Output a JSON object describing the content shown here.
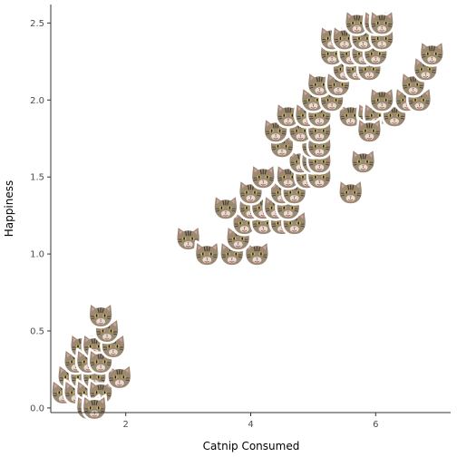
{
  "chart_data": {
    "type": "scatter",
    "title": "",
    "xlabel": "Catnip Consumed",
    "ylabel": "Happiness",
    "xlim": [
      0.8,
      7.2
    ],
    "ylim": [
      -0.03,
      2.62
    ],
    "xticks": [
      2,
      4,
      6
    ],
    "yticks": [
      0.0,
      0.5,
      1.0,
      1.5,
      2.0,
      2.5
    ],
    "ytick_labels": [
      "0.0",
      "0.5",
      "1.0",
      "1.5",
      "2.0",
      "2.5"
    ],
    "grid": false,
    "legend": "none",
    "marker": "cat-face-icon",
    "colors": {
      "fur": "#9a8a73",
      "stripe": "#4a3c2c",
      "ear_inner": "#d9a0a0",
      "eye": "#c8b25a",
      "nose": "#c87878",
      "outline": "#ffffff",
      "axis": "#333333"
    },
    "points": [
      {
        "x": 1.0,
        "y": 0.1
      },
      {
        "x": 1.1,
        "y": 0.2
      },
      {
        "x": 1.2,
        "y": 0.1
      },
      {
        "x": 1.3,
        "y": 0.2
      },
      {
        "x": 1.4,
        "y": 0.1
      },
      {
        "x": 1.5,
        "y": 0.2
      },
      {
        "x": 1.6,
        "y": 0.1
      },
      {
        "x": 1.9,
        "y": 0.2
      },
      {
        "x": 1.2,
        "y": 0.3
      },
      {
        "x": 1.3,
        "y": 0.4
      },
      {
        "x": 1.4,
        "y": 0.3
      },
      {
        "x": 1.5,
        "y": 0.4
      },
      {
        "x": 1.6,
        "y": 0.3
      },
      {
        "x": 1.8,
        "y": 0.4
      },
      {
        "x": 1.7,
        "y": 0.5
      },
      {
        "x": 1.6,
        "y": 0.6
      },
      {
        "x": 1.4,
        "y": 0.0
      },
      {
        "x": 1.5,
        "y": 0.0
      },
      {
        "x": 3.0,
        "y": 1.1
      },
      {
        "x": 3.3,
        "y": 1.0
      },
      {
        "x": 3.7,
        "y": 1.0
      },
      {
        "x": 4.1,
        "y": 1.0
      },
      {
        "x": 3.8,
        "y": 1.1
      },
      {
        "x": 3.9,
        "y": 1.2
      },
      {
        "x": 4.2,
        "y": 1.2
      },
      {
        "x": 4.5,
        "y": 1.2
      },
      {
        "x": 4.7,
        "y": 1.2
      },
      {
        "x": 3.6,
        "y": 1.3
      },
      {
        "x": 4.0,
        "y": 1.3
      },
      {
        "x": 4.2,
        "y": 1.3
      },
      {
        "x": 4.4,
        "y": 1.3
      },
      {
        "x": 4.6,
        "y": 1.3
      },
      {
        "x": 4.0,
        "y": 1.4
      },
      {
        "x": 4.5,
        "y": 1.4
      },
      {
        "x": 4.7,
        "y": 1.4
      },
      {
        "x": 4.2,
        "y": 1.5
      },
      {
        "x": 4.6,
        "y": 1.5
      },
      {
        "x": 4.9,
        "y": 1.5
      },
      {
        "x": 5.1,
        "y": 1.5
      },
      {
        "x": 4.8,
        "y": 1.6
      },
      {
        "x": 5.0,
        "y": 1.6
      },
      {
        "x": 5.1,
        "y": 1.6
      },
      {
        "x": 5.6,
        "y": 1.4
      },
      {
        "x": 5.8,
        "y": 1.6
      },
      {
        "x": 4.5,
        "y": 1.7
      },
      {
        "x": 5.0,
        "y": 1.7
      },
      {
        "x": 5.1,
        "y": 1.7
      },
      {
        "x": 4.8,
        "y": 1.8
      },
      {
        "x": 5.1,
        "y": 1.8
      },
      {
        "x": 4.4,
        "y": 1.8
      },
      {
        "x": 4.6,
        "y": 1.9
      },
      {
        "x": 4.9,
        "y": 1.9
      },
      {
        "x": 5.1,
        "y": 1.9
      },
      {
        "x": 5.6,
        "y": 1.9
      },
      {
        "x": 5.9,
        "y": 1.9
      },
      {
        "x": 6.0,
        "y": 1.9
      },
      {
        "x": 6.3,
        "y": 1.9
      },
      {
        "x": 5.9,
        "y": 1.8
      },
      {
        "x": 5.0,
        "y": 2.0
      },
      {
        "x": 5.3,
        "y": 2.0
      },
      {
        "x": 6.1,
        "y": 2.0
      },
      {
        "x": 6.5,
        "y": 2.0
      },
      {
        "x": 6.7,
        "y": 2.0
      },
      {
        "x": 6.6,
        "y": 2.1
      },
      {
        "x": 5.1,
        "y": 2.1
      },
      {
        "x": 5.4,
        "y": 2.1
      },
      {
        "x": 5.5,
        "y": 2.2
      },
      {
        "x": 5.7,
        "y": 2.2
      },
      {
        "x": 5.9,
        "y": 2.2
      },
      {
        "x": 6.8,
        "y": 2.2
      },
      {
        "x": 6.9,
        "y": 2.3
      },
      {
        "x": 5.3,
        "y": 2.3
      },
      {
        "x": 5.6,
        "y": 2.3
      },
      {
        "x": 5.8,
        "y": 2.3
      },
      {
        "x": 6.0,
        "y": 2.3
      },
      {
        "x": 5.3,
        "y": 2.4
      },
      {
        "x": 5.5,
        "y": 2.4
      },
      {
        "x": 5.8,
        "y": 2.4
      },
      {
        "x": 6.1,
        "y": 2.4
      },
      {
        "x": 5.7,
        "y": 2.5
      },
      {
        "x": 6.0,
        "y": 2.5
      },
      {
        "x": 6.1,
        "y": 2.5
      }
    ]
  }
}
